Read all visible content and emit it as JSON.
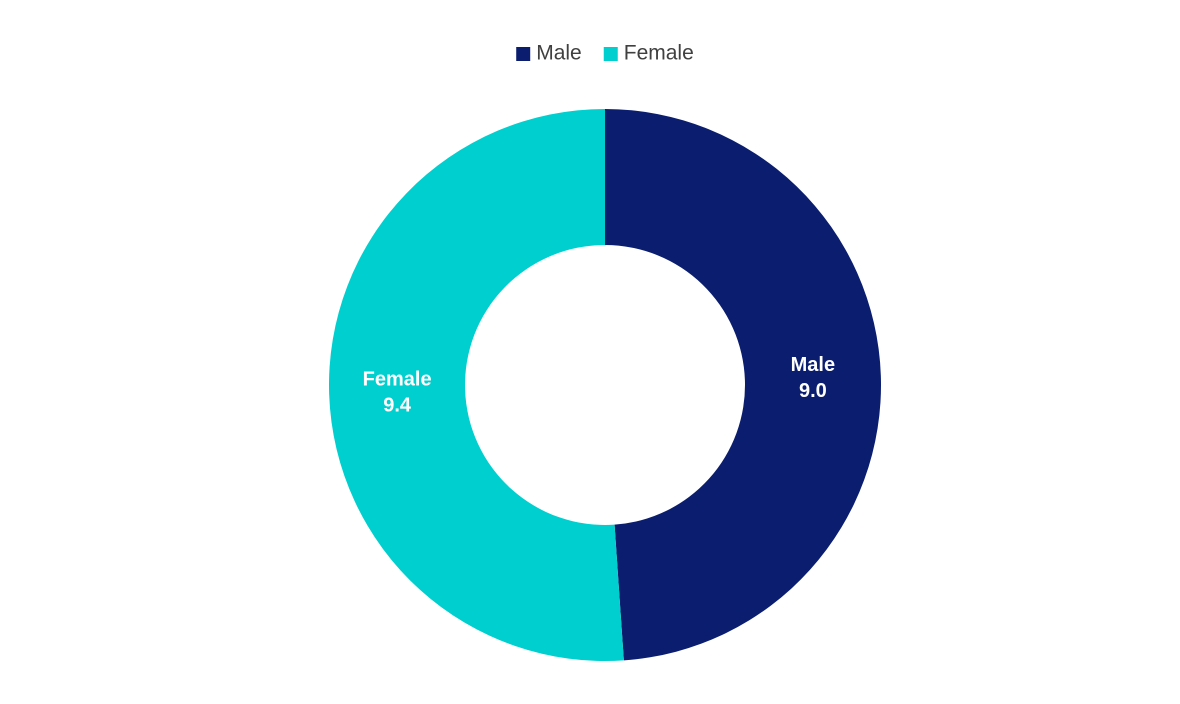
{
  "chart_data": {
    "type": "donut",
    "categories": [
      "Male",
      "Female"
    ],
    "values": [
      9.0,
      9.4
    ],
    "value_labels": [
      "9.0",
      "9.4"
    ],
    "colors": [
      "#0a1d6f",
      "#00cfcf"
    ],
    "legend": "top"
  }
}
